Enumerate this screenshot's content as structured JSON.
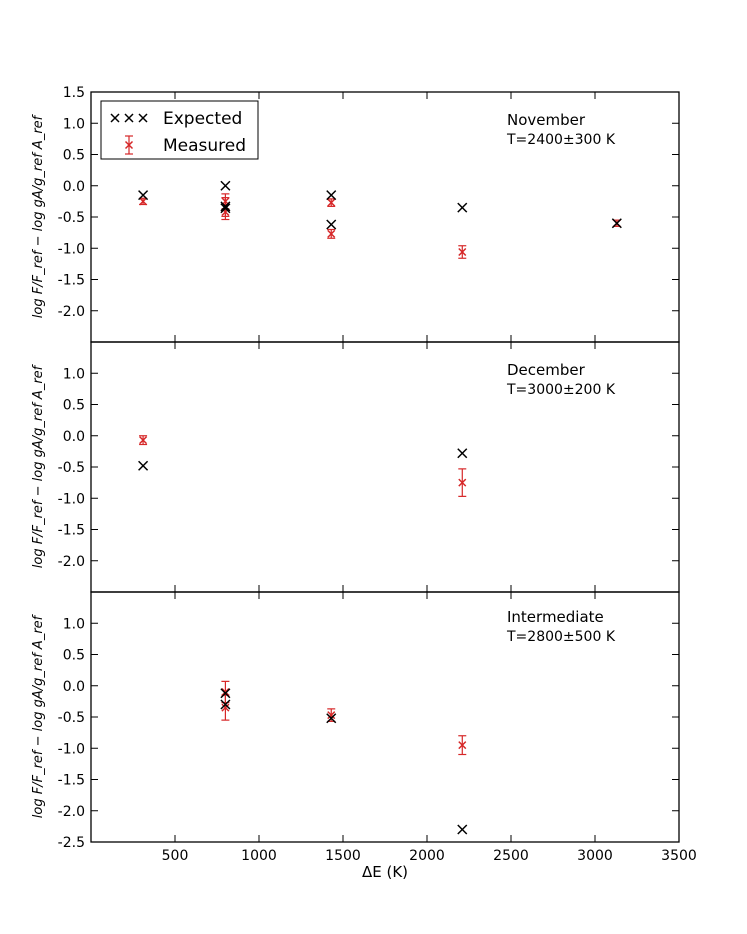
{
  "chart_data": {
    "type": "scatter",
    "xlabel": "ΔE (K)",
    "ylabel": "log F/F_ref − log gA/g_ref A_ref",
    "xlim": [
      0,
      3500
    ],
    "xticks": [
      500,
      1000,
      1500,
      2000,
      2500,
      3000,
      3500
    ],
    "legend": {
      "placement": "top-left",
      "entries": [
        {
          "label": "Expected",
          "color": "#000000",
          "marker": "x"
        },
        {
          "label": "Measured",
          "color": "#d62728",
          "marker": "x-errorbar"
        }
      ]
    },
    "colors": {
      "expected": "#000000",
      "measured": "#d62728"
    },
    "panels": [
      {
        "name": "November",
        "temperature": "T=2400±300 K",
        "ylim": [
          -2.5,
          1.5
        ],
        "yticks": [
          "1.5",
          "1.0",
          "0.5",
          "0.0",
          "-0.5",
          "-1.0",
          "-1.5",
          "-2.0"
        ],
        "expected": [
          [
            310,
            -0.15
          ],
          [
            800,
            0.0
          ],
          [
            800,
            -0.33
          ],
          [
            800,
            -0.36
          ],
          [
            1430,
            -0.15
          ],
          [
            1430,
            -0.62
          ],
          [
            2210,
            -0.35
          ],
          [
            3130,
            -0.6
          ]
        ],
        "measured": [
          [
            310,
            -0.25,
            0.05
          ],
          [
            800,
            -0.25,
            0.12
          ],
          [
            800,
            -0.34,
            0.15
          ],
          [
            800,
            -0.42,
            0.12
          ],
          [
            1430,
            -0.27,
            0.06
          ],
          [
            1430,
            -0.77,
            0.07
          ],
          [
            2210,
            -1.06,
            0.1
          ],
          [
            3130,
            -0.6,
            0.05
          ]
        ]
      },
      {
        "name": "December",
        "temperature": "T=3000±200 K",
        "ylim": [
          -2.5,
          1.5
        ],
        "yticks": [
          "1.0",
          "0.5",
          "0.0",
          "-0.5",
          "-1.0",
          "-1.5",
          "-2.0"
        ],
        "expected": [
          [
            310,
            -0.48
          ],
          [
            2210,
            -0.28
          ]
        ],
        "measured": [
          [
            310,
            -0.07,
            0.07
          ],
          [
            2210,
            -0.75,
            0.22
          ]
        ]
      },
      {
        "name": "Intermediate",
        "temperature": "T=2800±500 K",
        "ylim": [
          -2.5,
          1.5
        ],
        "yticks": [
          "1.0",
          "0.5",
          "0.0",
          "-0.5",
          "-1.0",
          "-1.5",
          "-2.0",
          "-2.5"
        ],
        "expected": [
          [
            800,
            -0.12
          ],
          [
            800,
            -0.3
          ],
          [
            1430,
            -0.52
          ],
          [
            2210,
            -2.3
          ]
        ],
        "measured": [
          [
            800,
            -0.1,
            0.17
          ],
          [
            800,
            -0.35,
            0.2
          ],
          [
            1430,
            -0.47,
            0.1
          ],
          [
            2210,
            -0.95,
            0.15
          ]
        ]
      }
    ]
  }
}
